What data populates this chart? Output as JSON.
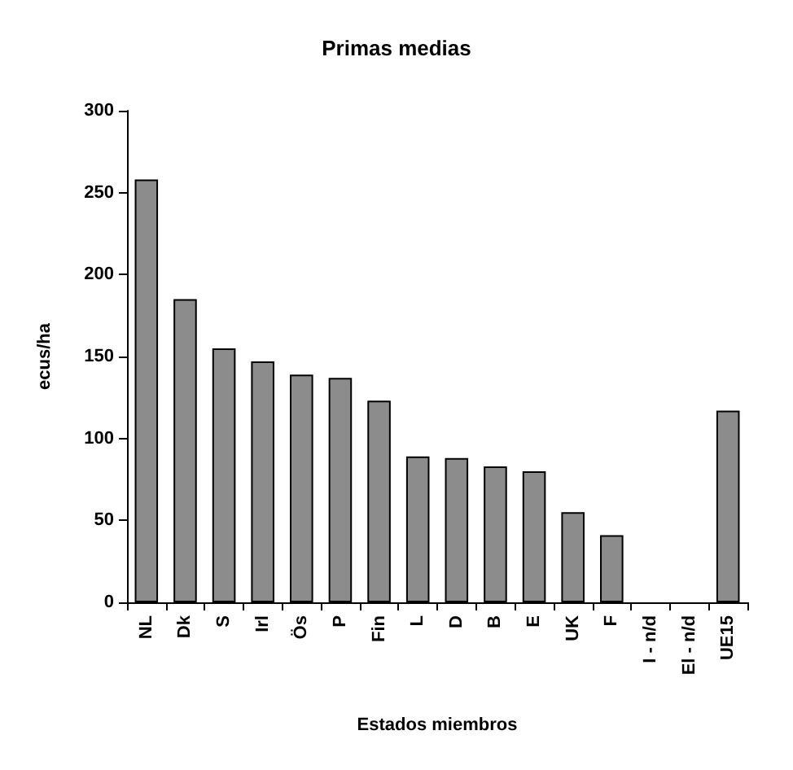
{
  "chart_data": {
    "type": "bar",
    "title": "Primas medias",
    "xlabel": "Estados miembros",
    "ylabel": "ecus/ha",
    "categories": [
      "NL",
      "Dk",
      "S",
      "Irl",
      "Ös",
      "P",
      "Fin",
      "L",
      "D",
      "B",
      "E",
      "UK",
      "F",
      "I - n/d",
      "El - n/d",
      "UE15"
    ],
    "values": [
      258,
      185,
      155,
      147,
      139,
      137,
      123,
      89,
      88,
      83,
      80,
      55,
      41,
      null,
      null,
      117
    ],
    "color": "#8c8c8c",
    "ylim": [
      0,
      300
    ],
    "yticks": [
      0,
      50,
      100,
      150,
      200,
      250,
      300
    ],
    "grid": false
  }
}
